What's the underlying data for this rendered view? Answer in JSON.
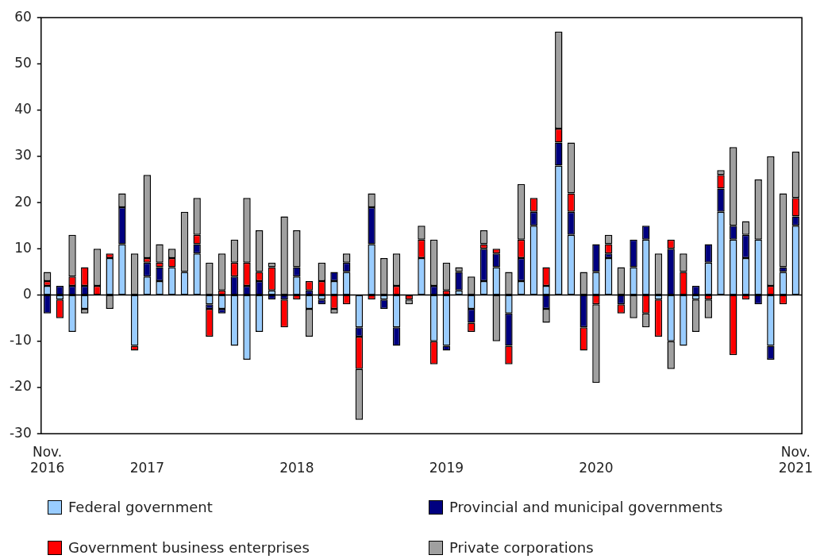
{
  "chart_data": {
    "type": "bar",
    "stacked": true,
    "categories": [
      "Nov. 2016",
      null,
      null,
      null,
      null,
      null,
      null,
      null,
      "2017",
      null,
      null,
      null,
      null,
      null,
      null,
      null,
      null,
      null,
      null,
      null,
      "2018",
      null,
      null,
      null,
      null,
      null,
      null,
      null,
      null,
      null,
      null,
      null,
      "2019",
      null,
      null,
      null,
      null,
      null,
      null,
      null,
      null,
      null,
      null,
      null,
      "2020",
      null,
      null,
      null,
      null,
      null,
      null,
      null,
      null,
      null,
      null,
      null,
      null,
      null,
      null,
      null,
      "Nov. 2021"
    ],
    "series": [
      {
        "name": "Federal government",
        "color": "#99ccff",
        "values": [
          2,
          -1,
          -8,
          -3,
          0,
          8,
          11,
          -11,
          4,
          3,
          6,
          5,
          9,
          -2,
          -3,
          -11,
          -14,
          -8,
          1,
          0,
          4,
          -3,
          -1,
          3,
          5,
          -7,
          11,
          -1,
          -7,
          0,
          8,
          -10,
          -11,
          1,
          -3,
          3,
          6,
          -4,
          3,
          15,
          2,
          28,
          13,
          0,
          5,
          8,
          0,
          6,
          12,
          -1,
          -10,
          -11,
          -1,
          7,
          18,
          12,
          8,
          12,
          -11,
          5,
          15
        ]
      },
      {
        "name": "Provincial and municipal governments",
        "color": "#000080",
        "values": [
          -4,
          2,
          2,
          2,
          0,
          0,
          8,
          0,
          3,
          3,
          0,
          0,
          2,
          -1,
          -1,
          4,
          2,
          3,
          -1,
          -1,
          2,
          1,
          -1,
          2,
          2,
          -2,
          8,
          -2,
          -4,
          0,
          0,
          2,
          -1,
          4,
          -3,
          7,
          3,
          -7,
          5,
          3,
          -3,
          5,
          5,
          -7,
          6,
          1,
          -2,
          6,
          3,
          0,
          10,
          0,
          2,
          4,
          5,
          3,
          5,
          -2,
          -3,
          1,
          2
        ]
      },
      {
        "name": "Government business enterprises",
        "color": "#ff0000",
        "values": [
          1,
          -4,
          2,
          4,
          2,
          1,
          0,
          -1,
          1,
          1,
          2,
          0,
          2,
          -6,
          1,
          3,
          5,
          2,
          5,
          -6,
          -1,
          2,
          3,
          -3,
          -2,
          -7,
          -1,
          0,
          2,
          -1,
          4,
          -5,
          1,
          0,
          -2,
          1,
          1,
          -4,
          4,
          3,
          4,
          3,
          4,
          -5,
          -2,
          2,
          -2,
          0,
          -4,
          -8,
          2,
          5,
          0,
          -1,
          3,
          -13,
          -1,
          0,
          2,
          -2,
          4
        ]
      },
      {
        "name": "Private corporations",
        "color": "#a0a0a0",
        "values": [
          2,
          0,
          9,
          -1,
          8,
          -3,
          3,
          9,
          18,
          4,
          2,
          13,
          8,
          7,
          8,
          5,
          14,
          9,
          1,
          17,
          8,
          -6,
          4,
          -1,
          2,
          -11,
          3,
          8,
          7,
          -1,
          3,
          10,
          6,
          1,
          4,
          3,
          -10,
          5,
          12,
          0,
          -3,
          21,
          11,
          5,
          -17,
          2,
          6,
          -5,
          -3,
          9,
          -6,
          4,
          -7,
          -4,
          1,
          17,
          3,
          13,
          28,
          16,
          10
        ]
      }
    ],
    "ylim": [
      -30,
      60
    ],
    "yticks": [
      -30,
      -20,
      -10,
      0,
      10,
      20,
      30,
      40,
      50,
      60
    ],
    "ref_lines": [
      {
        "axis": "y",
        "value": 0,
        "color": "#000000"
      }
    ],
    "grid": false,
    "legend": "bottom"
  }
}
